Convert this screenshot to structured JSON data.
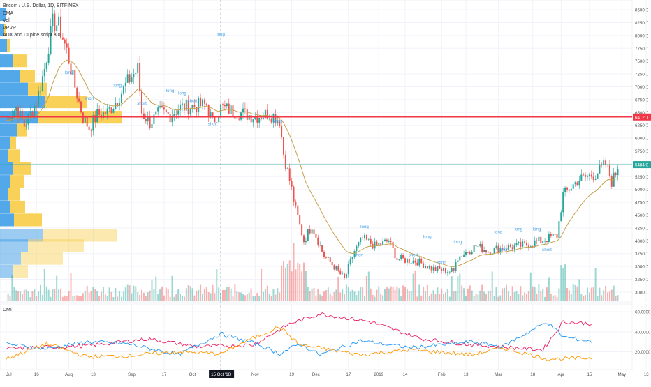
{
  "header": {
    "symbol": "Bitcoin / U.S. Dollar, 1D, BITFINEX",
    "indicators": [
      "EMA",
      "Vol",
      "VPVR",
      "ADX and DI pine script 3.0"
    ]
  },
  "dmi_panel": {
    "label": "DMI"
  },
  "price_axis": {
    "ticks": [
      8500,
      8250,
      8000,
      7750,
      7500,
      7250,
      7000,
      6750,
      6500,
      6250,
      6000,
      5750,
      5500,
      5250,
      5000,
      4750,
      4500,
      4250,
      4000,
      3750,
      3500,
      3250,
      3000
    ],
    "tick_labels": [
      "8500.0",
      "8250.0",
      "8000.0",
      "7750.0",
      "7500.0",
      "7250.0",
      "7000.0",
      "6750.0",
      "6500.0",
      "6250.0",
      "6000.0",
      "5750.0",
      "5500.0",
      "5250.0",
      "5000.0",
      "4750.0",
      "4500.0",
      "4250.0",
      "4000.0",
      "3750.0",
      "3500.0",
      "3250.0",
      "3000.0"
    ]
  },
  "dmi_axis": {
    "tick_labels": [
      "60.0000",
      "40.0000",
      "20.0000"
    ],
    "ticks": [
      60,
      40,
      20
    ]
  },
  "time_axis": {
    "labels": [
      "Jul",
      "16",
      "Aug",
      "13",
      "Sep",
      "17",
      "Oct",
      "15 Oct '18",
      "Nov",
      "19",
      "Dec",
      "17",
      "2019",
      "14",
      "Feb",
      "13",
      "Mar",
      "18",
      "Apr",
      "15",
      "May",
      "13"
    ],
    "highlight": "15 Oct '18"
  },
  "price_lines": [
    {
      "label": "6412.1",
      "value": 6412.1,
      "color": "#f23645"
    },
    {
      "label": "5484.0",
      "value": 5484.0,
      "color": "#26a69a"
    }
  ],
  "annotations": {
    "long": "long",
    "short": "short"
  },
  "colors": {
    "up": "#26a69a",
    "down": "#ef5350",
    "ema": "#c6a04a",
    "vpvr_up": "#4aa3e8",
    "vpvr_down": "#f9cf50",
    "adx": "#e91e63",
    "di_plus": "#2196f3",
    "di_minus": "#ff9800",
    "red_line": "#f23645",
    "teal_line": "#26a69a"
  },
  "chart_data": {
    "type": "candlestick",
    "title": "Bitcoin / U.S. Dollar, 1D, BITFINEX",
    "ylim": [
      2850,
      8650
    ],
    "ema_length_days": 21,
    "anchors": [
      [
        "2018-07-01",
        6350
      ],
      [
        "2018-07-06",
        6600
      ],
      [
        "2018-07-10",
        6250
      ],
      [
        "2018-07-16",
        6700
      ],
      [
        "2018-07-20",
        7350
      ],
      [
        "2018-07-24",
        8250
      ],
      [
        "2018-07-27",
        8200
      ],
      [
        "2018-07-31",
        7700
      ],
      [
        "2018-08-04",
        7000
      ],
      [
        "2018-08-08",
        6400
      ],
      [
        "2018-08-11",
        6200
      ],
      [
        "2018-08-15",
        6450
      ],
      [
        "2018-08-20",
        6500
      ],
      [
        "2018-08-25",
        6750
      ],
      [
        "2018-08-30",
        7100
      ],
      [
        "2018-09-04",
        7350
      ],
      [
        "2018-09-06",
        6500
      ],
      [
        "2018-09-10",
        6300
      ],
      [
        "2018-09-15",
        6500
      ],
      [
        "2018-09-20",
        6450
      ],
      [
        "2018-09-25",
        6600
      ],
      [
        "2018-10-01",
        6620
      ],
      [
        "2018-10-08",
        6650
      ],
      [
        "2018-10-11",
        6300
      ],
      [
        "2018-10-15",
        6600
      ],
      [
        "2018-10-20",
        6540
      ],
      [
        "2018-11-01",
        6420
      ],
      [
        "2018-11-08",
        6480
      ],
      [
        "2018-11-13",
        6350
      ],
      [
        "2018-11-15",
        5700
      ],
      [
        "2018-11-19",
        5000
      ],
      [
        "2018-11-21",
        4600
      ],
      [
        "2018-11-25",
        4000
      ],
      [
        "2018-11-29",
        4300
      ],
      [
        "2018-12-05",
        3700
      ],
      [
        "2018-12-10",
        3500
      ],
      [
        "2018-12-15",
        3250
      ],
      [
        "2018-12-20",
        3800
      ],
      [
        "2018-12-24",
        4050
      ],
      [
        "2018-12-30",
        3900
      ],
      [
        "2019-01-06",
        4000
      ],
      [
        "2019-01-10",
        3650
      ],
      [
        "2019-01-20",
        3600
      ],
      [
        "2019-01-28",
        3450
      ],
      [
        "2019-02-07",
        3400
      ],
      [
        "2019-02-08",
        3650
      ],
      [
        "2019-02-18",
        3900
      ],
      [
        "2019-02-24",
        3800
      ],
      [
        "2019-03-01",
        3850
      ],
      [
        "2019-03-15",
        3920
      ],
      [
        "2019-03-30",
        4100
      ],
      [
        "2019-04-02",
        4900
      ],
      [
        "2019-04-10",
        5200
      ],
      [
        "2019-04-18",
        5300
      ],
      [
        "2019-04-23",
        5500
      ],
      [
        "2019-04-26",
        5150
      ],
      [
        "2019-04-29",
        5400
      ]
    ],
    "dmi_series": [
      {
        "name": "ADX",
        "values": [
          [
            0,
            23
          ],
          [
            40,
            26
          ],
          [
            70,
            33
          ],
          [
            95,
            25
          ],
          [
            122,
            27
          ],
          [
            140,
            48
          ],
          [
            155,
            58
          ],
          [
            180,
            50
          ],
          [
            205,
            33
          ],
          [
            230,
            27
          ],
          [
            265,
            22
          ],
          [
            275,
            50
          ],
          [
            290,
            48
          ]
        ]
      },
      {
        "name": "+DI",
        "values": [
          [
            0,
            28
          ],
          [
            20,
            23
          ],
          [
            40,
            30
          ],
          [
            60,
            28
          ],
          [
            85,
            17
          ],
          [
            106,
            38
          ],
          [
            125,
            27
          ],
          [
            135,
            18
          ],
          [
            145,
            28
          ],
          [
            155,
            17
          ],
          [
            175,
            31
          ],
          [
            200,
            24
          ],
          [
            230,
            30
          ],
          [
            245,
            25
          ],
          [
            267,
            50
          ],
          [
            275,
            35
          ],
          [
            290,
            30
          ]
        ]
      },
      {
        "name": "-DI",
        "values": [
          [
            0,
            13
          ],
          [
            20,
            28
          ],
          [
            40,
            15
          ],
          [
            60,
            16
          ],
          [
            85,
            20
          ],
          [
            106,
            18
          ],
          [
            120,
            32
          ],
          [
            135,
            45
          ],
          [
            145,
            27
          ],
          [
            175,
            17
          ],
          [
            200,
            22
          ],
          [
            230,
            17
          ],
          [
            245,
            24
          ],
          [
            267,
            13
          ],
          [
            275,
            13
          ],
          [
            290,
            14
          ]
        ]
      }
    ]
  }
}
